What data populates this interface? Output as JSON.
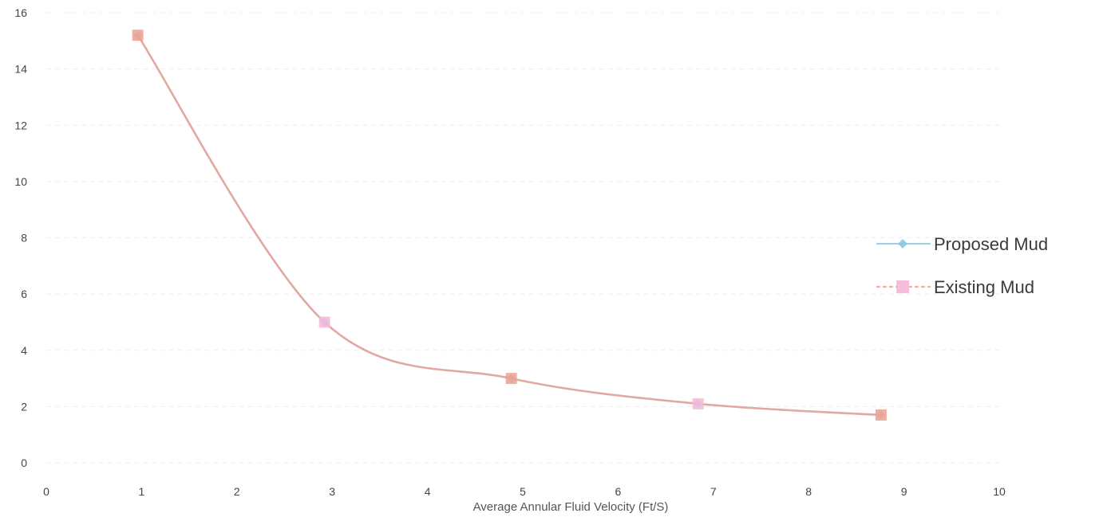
{
  "chart_data": {
    "type": "line",
    "title": "",
    "xlabel": "Average Annular Fluid Velocity  (Ft/S)",
    "ylabel": "",
    "xlim": [
      0,
      10
    ],
    "ylim": [
      0,
      16
    ],
    "x_ticks": [
      0,
      1,
      2,
      3,
      4,
      5,
      6,
      7,
      8,
      9,
      10
    ],
    "y_ticks": [
      0,
      2,
      4,
      6,
      8,
      10,
      12,
      14,
      16
    ],
    "grid": "horizontal",
    "legend_position": "right",
    "smooth": true,
    "series": [
      {
        "name": "Proposed Mud",
        "color": "#88c8e8",
        "marker": "diamond",
        "x": [
          0.96,
          2.92,
          4.88,
          6.84,
          8.76
        ],
        "y": [
          15.2,
          5.0,
          3.0,
          2.1,
          1.7
        ]
      },
      {
        "name": "Existing Mud",
        "color": "#f0a090",
        "marker_color": "#f4b8d8",
        "marker": "square",
        "x": [
          0.96,
          2.92,
          4.88,
          6.84,
          8.76
        ],
        "y": [
          15.2,
          5.0,
          3.0,
          2.1,
          1.7
        ]
      }
    ]
  }
}
